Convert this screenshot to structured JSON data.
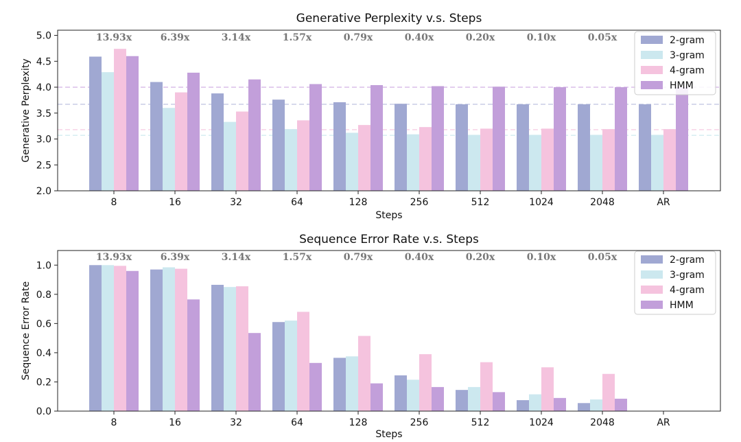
{
  "chart_data": [
    {
      "type": "bar",
      "title": "Generative Perplexity v.s. Steps",
      "xlabel": "Steps",
      "ylabel": "Generative Perplexity",
      "ylim": [
        2.0,
        5.1
      ],
      "yticks": [
        "2.0",
        "2.5",
        "3.0",
        "3.5",
        "4.0",
        "4.5",
        "5.0"
      ],
      "ytick_values": [
        2.0,
        2.5,
        3.0,
        3.5,
        4.0,
        4.5,
        5.0
      ],
      "categories": [
        "8",
        "16",
        "32",
        "64",
        "128",
        "256",
        "512",
        "1024",
        "2048",
        "AR"
      ],
      "ratio_labels": [
        "13.93x",
        "6.39x",
        "3.14x",
        "1.57x",
        "0.79x",
        "0.40x",
        "0.20x",
        "0.10x",
        "0.05x"
      ],
      "legend_position": "top-right",
      "reference_lines": [
        {
          "value": 4.0,
          "color": "#d7b8e6"
        },
        {
          "value": 3.67,
          "color": "#c3c8e3"
        },
        {
          "value": 3.18,
          "color": "#f6cfe3"
        },
        {
          "value": 3.07,
          "color": "#d2ecf0"
        }
      ],
      "series": [
        {
          "name": "2-gram",
          "color": "#a0a8d2",
          "values": [
            4.59,
            4.1,
            3.88,
            3.76,
            3.71,
            3.68,
            3.67,
            3.67,
            3.67,
            3.67
          ]
        },
        {
          "name": "3-gram",
          "color": "#cce8ef",
          "values": [
            4.29,
            3.6,
            3.33,
            3.19,
            3.12,
            3.09,
            3.08,
            3.08,
            3.08,
            3.08
          ]
        },
        {
          "name": "4-gram",
          "color": "#f5c3de",
          "values": [
            4.74,
            3.9,
            3.53,
            3.36,
            3.27,
            3.23,
            3.2,
            3.2,
            3.19,
            3.19
          ]
        },
        {
          "name": "HMM",
          "color": "#c29fda",
          "values": [
            4.6,
            4.28,
            4.15,
            4.06,
            4.04,
            4.02,
            4.01,
            4.0,
            4.0,
            4.0
          ]
        }
      ]
    },
    {
      "type": "bar",
      "title": "Sequence Error Rate v.s. Steps",
      "xlabel": "Steps",
      "ylabel": "Sequence Error Rate",
      "ylim": [
        0.0,
        1.1
      ],
      "yticks": [
        "0.0",
        "0.2",
        "0.4",
        "0.6",
        "0.8",
        "1.0"
      ],
      "ytick_values": [
        0.0,
        0.2,
        0.4,
        0.6,
        0.8,
        1.0
      ],
      "categories": [
        "8",
        "16",
        "32",
        "64",
        "128",
        "256",
        "512",
        "1024",
        "2048",
        "AR"
      ],
      "ratio_labels": [
        "13.93x",
        "6.39x",
        "3.14x",
        "1.57x",
        "0.79x",
        "0.40x",
        "0.20x",
        "0.10x",
        "0.05x"
      ],
      "legend_position": "top-right",
      "reference_lines": [],
      "series": [
        {
          "name": "2-gram",
          "color": "#a0a8d2",
          "values": [
            1.0,
            0.97,
            0.865,
            0.61,
            0.365,
            0.245,
            0.145,
            0.075,
            0.055,
            0
          ]
        },
        {
          "name": "3-gram",
          "color": "#cce8ef",
          "values": [
            1.0,
            0.985,
            0.85,
            0.62,
            0.375,
            0.215,
            0.165,
            0.115,
            0.08,
            0
          ]
        },
        {
          "name": "4-gram",
          "color": "#f5c3de",
          "values": [
            0.995,
            0.975,
            0.855,
            0.68,
            0.515,
            0.39,
            0.335,
            0.3,
            0.255,
            0
          ]
        },
        {
          "name": "HMM",
          "color": "#c29fda",
          "values": [
            0.96,
            0.765,
            0.535,
            0.33,
            0.19,
            0.165,
            0.13,
            0.09,
            0.085,
            0
          ]
        }
      ]
    }
  ]
}
